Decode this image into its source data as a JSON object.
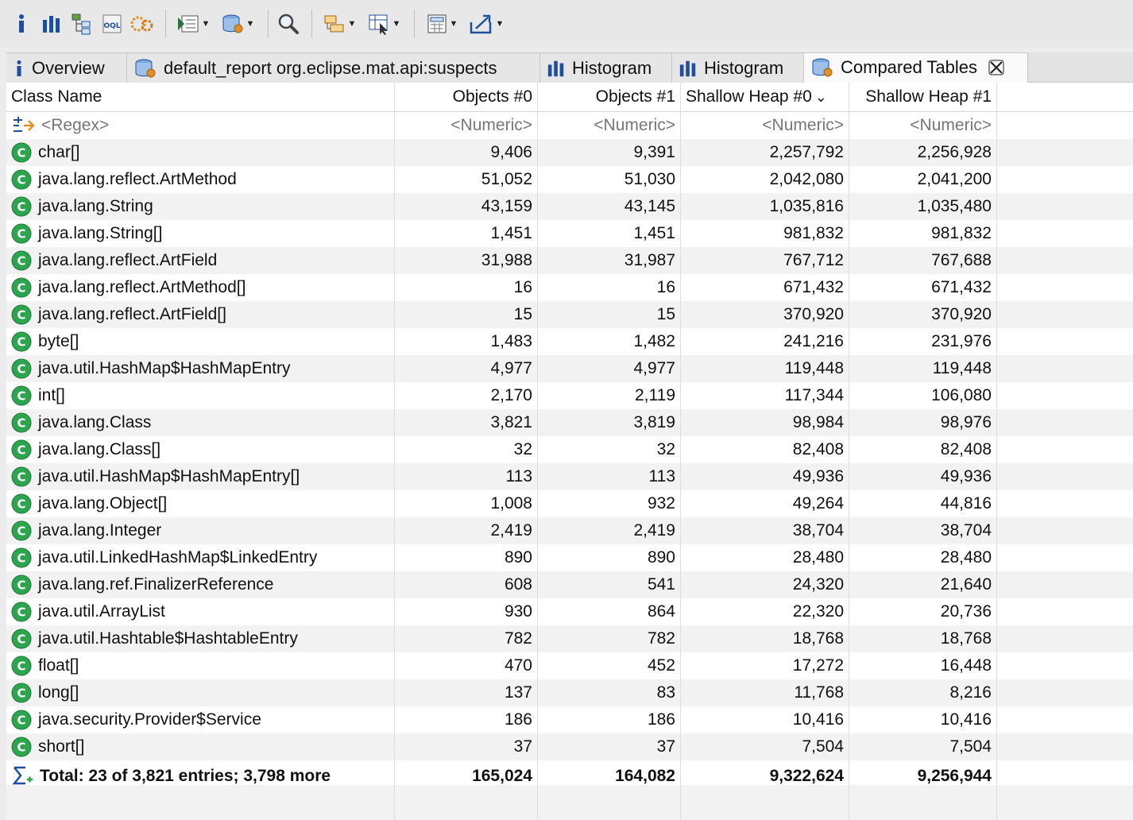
{
  "toolbar": {
    "buttons": [
      {
        "name": "info-icon"
      },
      {
        "name": "histogram-icon"
      },
      {
        "name": "dominator-tree-icon"
      },
      {
        "name": "oql-icon"
      },
      {
        "name": "heap-dump-overview-icon"
      },
      {
        "name": "run-expert-system-icon",
        "dropdown": true
      },
      {
        "name": "query-browser-icon",
        "dropdown": true
      },
      {
        "name": "search-icon"
      },
      {
        "name": "group-by-icon",
        "dropdown": true
      },
      {
        "name": "column-editor-icon",
        "dropdown": true
      },
      {
        "name": "calculator-icon",
        "dropdown": true
      },
      {
        "name": "export-icon",
        "dropdown": true
      }
    ],
    "oql_text": "OQL"
  },
  "tabs": [
    {
      "label": "Overview",
      "icon": "info-icon",
      "active": false
    },
    {
      "label": "default_report  org.eclipse.mat.api:suspects",
      "icon": "report-icon",
      "active": false
    },
    {
      "label": "Histogram",
      "icon": "histogram-icon",
      "active": false
    },
    {
      "label": "Histogram",
      "icon": "histogram-icon",
      "active": false
    },
    {
      "label": "Compared Tables",
      "icon": "compare-icon",
      "active": true
    }
  ],
  "table": {
    "columns": [
      "Class Name",
      "Objects #0",
      "Objects #1",
      "Shallow Heap #0",
      "Shallow Heap #1"
    ],
    "sort_indicator": "⌄",
    "filter": {
      "regex": "<Regex>",
      "numeric": "<Numeric>"
    },
    "rows": [
      [
        "char[]",
        "9,406",
        "9,391",
        "2,257,792",
        "2,256,928"
      ],
      [
        "java.lang.reflect.ArtMethod",
        "51,052",
        "51,030",
        "2,042,080",
        "2,041,200"
      ],
      [
        "java.lang.String",
        "43,159",
        "43,145",
        "1,035,816",
        "1,035,480"
      ],
      [
        "java.lang.String[]",
        "1,451",
        "1,451",
        "981,832",
        "981,832"
      ],
      [
        "java.lang.reflect.ArtField",
        "31,988",
        "31,987",
        "767,712",
        "767,688"
      ],
      [
        "java.lang.reflect.ArtMethod[]",
        "16",
        "16",
        "671,432",
        "671,432"
      ],
      [
        "java.lang.reflect.ArtField[]",
        "15",
        "15",
        "370,920",
        "370,920"
      ],
      [
        "byte[]",
        "1,483",
        "1,482",
        "241,216",
        "231,976"
      ],
      [
        "java.util.HashMap$HashMapEntry",
        "4,977",
        "4,977",
        "119,448",
        "119,448"
      ],
      [
        "int[]",
        "2,170",
        "2,119",
        "117,344",
        "106,080"
      ],
      [
        "java.lang.Class",
        "3,821",
        "3,819",
        "98,984",
        "98,976"
      ],
      [
        "java.lang.Class[]",
        "32",
        "32",
        "82,408",
        "82,408"
      ],
      [
        "java.util.HashMap$HashMapEntry[]",
        "113",
        "113",
        "49,936",
        "49,936"
      ],
      [
        "java.lang.Object[]",
        "1,008",
        "932",
        "49,264",
        "44,816"
      ],
      [
        "java.lang.Integer",
        "2,419",
        "2,419",
        "38,704",
        "38,704"
      ],
      [
        "java.util.LinkedHashMap$LinkedEntry",
        "890",
        "890",
        "28,480",
        "28,480"
      ],
      [
        "java.lang.ref.FinalizerReference",
        "608",
        "541",
        "24,320",
        "21,640"
      ],
      [
        "java.util.ArrayList",
        "930",
        "864",
        "22,320",
        "20,736"
      ],
      [
        "java.util.Hashtable$HashtableEntry",
        "782",
        "782",
        "18,768",
        "18,768"
      ],
      [
        "float[]",
        "470",
        "452",
        "17,272",
        "16,448"
      ],
      [
        "long[]",
        "137",
        "83",
        "11,768",
        "8,216"
      ],
      [
        "java.security.Provider$Service",
        "186",
        "186",
        "10,416",
        "10,416"
      ],
      [
        "short[]",
        "37",
        "37",
        "7,504",
        "7,504"
      ]
    ],
    "total": {
      "label": "Total: 23 of 3,821 entries; 3,798 more",
      "values": [
        "165,024",
        "164,082",
        "9,322,624",
        "9,256,944"
      ]
    }
  },
  "colors": {
    "class_icon": "#2ea44f",
    "toolbar_icon": "#1f4e9c",
    "accent_orange": "#e0902a"
  }
}
